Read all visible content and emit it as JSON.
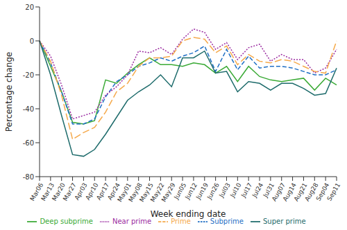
{
  "chart_data": {
    "type": "line",
    "x_label": "Week ending date",
    "y_label": "Percentage change",
    "categories": [
      "Mar06",
      "Mar13",
      "Mar20",
      "Mar27",
      "Apr03",
      "Apr10",
      "Apr17",
      "Apr24",
      "May01",
      "May08",
      "May15",
      "May22",
      "May29",
      "Jun05",
      "Jun12",
      "Jun19",
      "Jun26",
      "Jul03",
      "Jul10",
      "Jul17",
      "Jul24",
      "Jul31",
      "Aug07",
      "Aug14",
      "Aug21",
      "Aug28",
      "Sep04",
      "Sep11"
    ],
    "series": [
      {
        "name": "Deep subprime",
        "color": "#3aaa35",
        "line_style": "solid",
        "values": [
          0,
          -15,
          -30,
          -48,
          -49,
          -47,
          -23,
          -25,
          -19,
          -14,
          -10,
          -14,
          -14,
          -15,
          -13,
          -14,
          -19,
          -15,
          -24,
          -15,
          -21,
          -23,
          -24,
          -23,
          -22,
          -29,
          -22,
          -26
        ]
      },
      {
        "name": "Subprime",
        "color": "#1f6fc4",
        "line_style": "dashed",
        "values": [
          0,
          -13,
          -30,
          -49,
          -49,
          -46,
          -33,
          -24,
          -20,
          -15,
          -13,
          -10,
          -12,
          -9,
          -7,
          -3,
          -18,
          -5,
          -17,
          -9,
          -16,
          -15,
          -15,
          -16,
          -18,
          -20,
          -20,
          -17
        ]
      },
      {
        "name": "Near prime",
        "color": "#9a2aa0",
        "line_style": "dotted",
        "values": [
          0,
          -9,
          -26,
          -46,
          -44,
          -42,
          -32,
          -27,
          -20,
          -6,
          -7,
          -4,
          -8,
          1,
          7,
          5,
          -5,
          -1,
          -11,
          -4,
          -2,
          -12,
          -8,
          -11,
          -11,
          -19,
          -16,
          -5
        ]
      },
      {
        "name": "Prime",
        "color": "#f5a94a",
        "line_style": "long_dashed",
        "values": [
          0,
          -12,
          -32,
          -58,
          -54,
          -51,
          -42,
          -30,
          -25,
          -15,
          -10,
          -10,
          -9,
          0,
          2,
          1,
          -7,
          -3,
          -14,
          -8,
          -12,
          -13,
          -11,
          -12,
          -15,
          -18,
          -19,
          0
        ]
      },
      {
        "name": "Super prime",
        "color": "#1d6b6b",
        "line_style": "solid",
        "values": [
          0,
          -20,
          -44,
          -67,
          -68,
          -64,
          -55,
          -45,
          -35,
          -30,
          -26,
          -20,
          -27,
          -10,
          -10,
          -6,
          -19,
          -18,
          -30,
          -24,
          -25,
          -29,
          -25,
          -25,
          -28,
          -32,
          -31,
          -16
        ]
      }
    ],
    "ylim": [
      -80,
      20
    ],
    "yticks": [
      -80,
      -60,
      -40,
      -20,
      0,
      20
    ],
    "grid": false,
    "legend": "bottom"
  }
}
